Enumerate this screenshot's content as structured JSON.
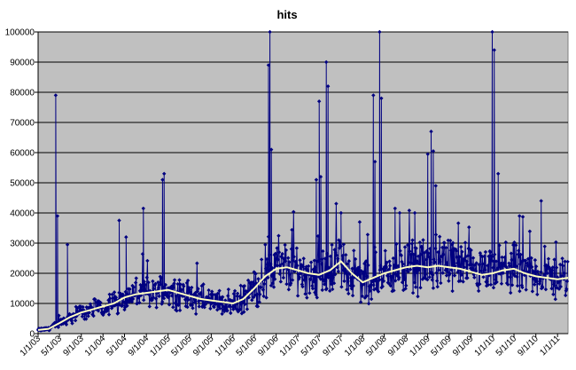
{
  "chart_data": {
    "type": "line",
    "title": "hits",
    "xlabel": "",
    "ylabel": "",
    "ylim": [
      0,
      100000
    ],
    "y_ticks": [
      0,
      10000,
      20000,
      30000,
      40000,
      50000,
      60000,
      70000,
      80000,
      90000,
      100000
    ],
    "y_tick_labels": [
      "0",
      "10000",
      "20000",
      "30000",
      "40000",
      "50000",
      "60000",
      "70000",
      "80000",
      "90000",
      "100000"
    ],
    "x_range": [
      "2003-01-01",
      "2011-03-01"
    ],
    "x_ticks": [
      "1/1/03",
      "5/1/03",
      "9/1/03",
      "1/1/04",
      "5/1/04",
      "9/1/04",
      "1/1/05",
      "5/1/05",
      "9/1/05",
      "1/1/06",
      "5/1/06",
      "9/1/06",
      "1/1/07",
      "5/1/07",
      "9/1/07",
      "1/1/08",
      "5/1/08",
      "9/1/08",
      "1/1/09",
      "5/1/09",
      "9/1/09",
      "1/1/10",
      "5/1/10",
      "9/1/10",
      "1/1/11"
    ],
    "grid": "horizontal",
    "plot_background": "#c0c0c0",
    "series": [
      {
        "role": "daily",
        "color": "#000080",
        "marker": "diamond",
        "base_trend": {
          "x": [
            "2003-01-01",
            "2003-03-01",
            "2003-05-01",
            "2003-07-01",
            "2003-09-01",
            "2003-11-01",
            "2004-01-01",
            "2004-03-01",
            "2004-05-01",
            "2004-07-01",
            "2004-09-01",
            "2004-11-01",
            "2005-01-01",
            "2005-03-01",
            "2005-05-01",
            "2005-07-01",
            "2005-09-01",
            "2005-11-01",
            "2006-01-01",
            "2006-03-01",
            "2006-05-01",
            "2006-07-01",
            "2006-09-01",
            "2006-11-01",
            "2007-01-01",
            "2007-03-01",
            "2007-05-01",
            "2007-07-01",
            "2007-09-01",
            "2007-11-01",
            "2008-01-01",
            "2008-03-01",
            "2008-05-01",
            "2008-07-01",
            "2008-09-01",
            "2008-11-01",
            "2009-01-01",
            "2009-03-01",
            "2009-05-01",
            "2009-07-01",
            "2009-09-01",
            "2009-11-01",
            "2010-01-01",
            "2010-03-01",
            "2010-05-01",
            "2010-07-01",
            "2010-09-01",
            "2010-11-01",
            "2011-01-01",
            "2011-03-01"
          ],
          "y": [
            1200,
            1600,
            3500,
            5500,
            7000,
            8000,
            9000,
            10000,
            12000,
            13000,
            13500,
            14000,
            14500,
            13500,
            12500,
            11500,
            11000,
            10500,
            10000,
            11500,
            15000,
            19000,
            21500,
            22000,
            21000,
            20000,
            19500,
            21000,
            24000,
            20000,
            17000,
            18500,
            20000,
            21000,
            22000,
            22500,
            22000,
            22500,
            22000,
            21500,
            20500,
            19500,
            20000,
            21000,
            21500,
            20000,
            19000,
            18500,
            18000,
            18500
          ]
        },
        "spikes": [
          {
            "x": "2003-04-10",
            "y": 79000
          },
          {
            "x": "2003-04-20",
            "y": 39000
          },
          {
            "x": "2003-06-15",
            "y": 29500
          },
          {
            "x": "2004-04-01",
            "y": 37500
          },
          {
            "x": "2004-05-10",
            "y": 32000
          },
          {
            "x": "2004-08-15",
            "y": 41500
          },
          {
            "x": "2004-12-01",
            "y": 51000
          },
          {
            "x": "2004-12-10",
            "y": 53000
          },
          {
            "x": "2006-07-20",
            "y": 89000
          },
          {
            "x": "2006-07-28",
            "y": 100000
          },
          {
            "x": "2006-08-05",
            "y": 61000
          },
          {
            "x": "2007-04-15",
            "y": 51000
          },
          {
            "x": "2007-05-01",
            "y": 77000
          },
          {
            "x": "2007-05-10",
            "y": 52000
          },
          {
            "x": "2007-06-10",
            "y": 90000
          },
          {
            "x": "2007-06-20",
            "y": 82000
          },
          {
            "x": "2007-09-01",
            "y": 40000
          },
          {
            "x": "2007-12-15",
            "y": 37000
          },
          {
            "x": "2008-03-01",
            "y": 79000
          },
          {
            "x": "2008-03-10",
            "y": 57000
          },
          {
            "x": "2008-04-05",
            "y": 100000
          },
          {
            "x": "2008-04-15",
            "y": 78000
          },
          {
            "x": "2008-07-01",
            "y": 41500
          },
          {
            "x": "2008-10-20",
            "y": 40000
          },
          {
            "x": "2009-01-01",
            "y": 59500
          },
          {
            "x": "2009-01-20",
            "y": 67000
          },
          {
            "x": "2009-02-01",
            "y": 60500
          },
          {
            "x": "2009-02-15",
            "y": 49000
          },
          {
            "x": "2009-12-30",
            "y": 100000
          },
          {
            "x": "2010-01-10",
            "y": 94000
          },
          {
            "x": "2010-02-01",
            "y": 53000
          },
          {
            "x": "2010-06-01",
            "y": 39000
          },
          {
            "x": "2010-10-01",
            "y": 44000
          }
        ]
      },
      {
        "role": "moving-average",
        "color": "#ffffc0",
        "x": [
          "2003-01-01",
          "2003-03-01",
          "2003-05-01",
          "2003-07-01",
          "2003-09-01",
          "2003-11-01",
          "2004-01-01",
          "2004-03-01",
          "2004-05-01",
          "2004-07-01",
          "2004-09-01",
          "2004-11-01",
          "2005-01-01",
          "2005-03-01",
          "2005-05-01",
          "2005-07-01",
          "2005-09-01",
          "2005-11-01",
          "2006-01-01",
          "2006-03-01",
          "2006-05-01",
          "2006-07-01",
          "2006-09-01",
          "2006-11-01",
          "2007-01-01",
          "2007-03-01",
          "2007-05-01",
          "2007-07-01",
          "2007-09-01",
          "2007-11-01",
          "2008-01-01",
          "2008-03-01",
          "2008-05-01",
          "2008-07-01",
          "2008-09-01",
          "2008-11-01",
          "2009-01-01",
          "2009-03-01",
          "2009-05-01",
          "2009-07-01",
          "2009-09-01",
          "2009-11-01",
          "2010-01-01",
          "2010-03-01",
          "2010-05-01",
          "2010-07-01",
          "2010-09-01",
          "2010-11-01",
          "2011-01-01",
          "2011-03-01"
        ],
        "y": [
          1200,
          1600,
          3500,
          5500,
          7000,
          8000,
          9000,
          10000,
          12000,
          13000,
          13500,
          14000,
          14500,
          13500,
          12500,
          11500,
          11000,
          10500,
          10000,
          11500,
          15000,
          19000,
          21500,
          22000,
          21000,
          20000,
          19500,
          21000,
          24000,
          20000,
          17000,
          18500,
          20000,
          21000,
          22000,
          22500,
          22000,
          22500,
          22000,
          21500,
          20500,
          19500,
          20000,
          21000,
          21500,
          20000,
          19000,
          18500,
          18000,
          18500
        ]
      }
    ]
  }
}
